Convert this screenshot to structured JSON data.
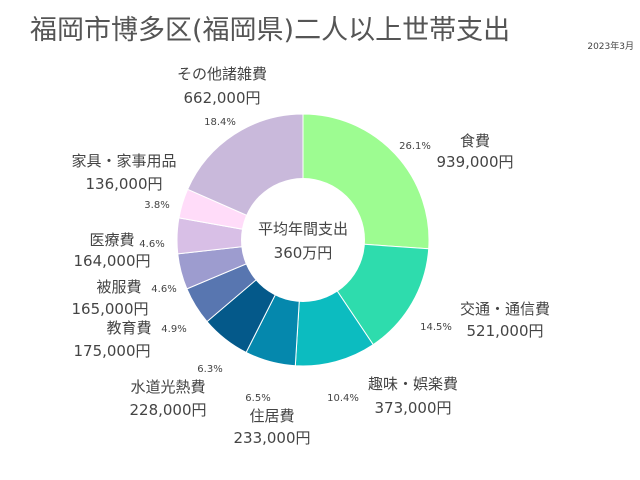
{
  "title": "福岡市博多区(福岡県)二人以上世帯支出",
  "date_label": "2023年3月",
  "chart_data": {
    "type": "pie",
    "variant": "donut",
    "center_label_line1": "平均年間支出",
    "center_label_line2": "360万円",
    "slices": [
      {
        "name": "食費",
        "amount": "939,000円",
        "value": 939000,
        "percent": "26.1%",
        "color": "#9dfc91"
      },
      {
        "name": "交通・通信費",
        "amount": "521,000円",
        "value": 521000,
        "percent": "14.5%",
        "color": "#2edcad"
      },
      {
        "name": "趣味・娯楽費",
        "amount": "373,000円",
        "value": 373000,
        "percent": "10.4%",
        "color": "#0cbcc0"
      },
      {
        "name": "住居費",
        "amount": "233,000円",
        "value": 233000,
        "percent": "6.5%",
        "color": "#0588ad"
      },
      {
        "name": "水道光熱費",
        "amount": "228,000円",
        "value": 228000,
        "percent": "6.3%",
        "color": "#04598a"
      },
      {
        "name": "教育費",
        "amount": "175,000円",
        "value": 175000,
        "percent": "4.9%",
        "color": "#5876b0"
      },
      {
        "name": "被服費",
        "amount": "165,000円",
        "value": 165000,
        "percent": "4.6%",
        "color": "#9d9ccf"
      },
      {
        "name": "医療費",
        "amount": "164,000円",
        "value": 164000,
        "percent": "4.6%",
        "color": "#d8bfe6"
      },
      {
        "name": "家具・家事用品",
        "amount": "136,000円",
        "value": 136000,
        "percent": "3.8%",
        "color": "#ffdcf9"
      },
      {
        "name": "その他諸雑費",
        "amount": "662,000円",
        "value": 662000,
        "percent": "18.4%",
        "color": "#c9b9db"
      }
    ]
  }
}
